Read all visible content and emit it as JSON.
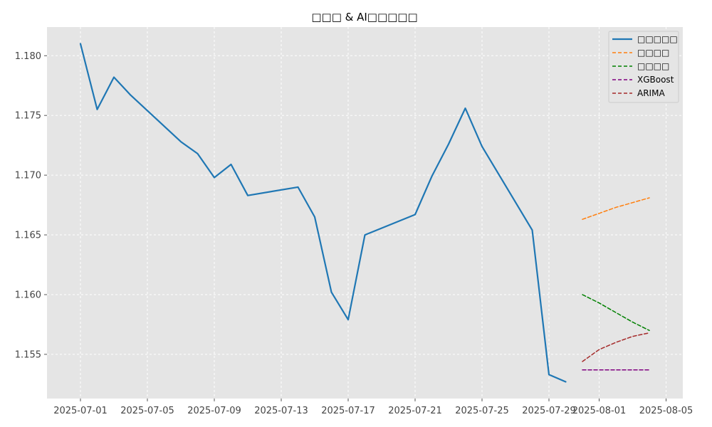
{
  "chart_data": {
    "type": "line",
    "title": "□□□ & AI□□□□□",
    "xlabel": "",
    "ylabel": "",
    "grid": true,
    "legend_position": "top-right",
    "xlim": [
      "2025-06-29",
      "2025-08-06"
    ],
    "ylim": [
      1.1513,
      1.1824
    ],
    "x_ticks": [
      "2025-07-01",
      "2025-07-05",
      "2025-07-09",
      "2025-07-13",
      "2025-07-17",
      "2025-07-21",
      "2025-07-25",
      "2025-07-29",
      "2025-08-01",
      "2025-08-05"
    ],
    "y_ticks": [
      1.155,
      1.16,
      1.165,
      1.17,
      1.175,
      1.18
    ],
    "y_tick_labels": [
      "1.155",
      "1.160",
      "1.165",
      "1.170",
      "1.175",
      "1.180"
    ],
    "series": [
      {
        "name": "□□□□□",
        "color": "#1f77b4",
        "style": "solid",
        "points": [
          [
            "2025-07-01",
            1.181
          ],
          [
            "2025-07-02",
            1.1755
          ],
          [
            "2025-07-03",
            1.1782
          ],
          [
            "2025-07-04",
            1.1767
          ],
          [
            "2025-07-07",
            1.1728
          ],
          [
            "2025-07-08",
            1.1718
          ],
          [
            "2025-07-09",
            1.1698
          ],
          [
            "2025-07-10",
            1.1709
          ],
          [
            "2025-07-11",
            1.1683
          ],
          [
            "2025-07-14",
            1.169
          ],
          [
            "2025-07-15",
            1.1665
          ],
          [
            "2025-07-16",
            1.1602
          ],
          [
            "2025-07-17",
            1.1579
          ],
          [
            "2025-07-18",
            1.165
          ],
          [
            "2025-07-21",
            1.1667
          ],
          [
            "2025-07-22",
            1.1699
          ],
          [
            "2025-07-23",
            1.1726
          ],
          [
            "2025-07-24",
            1.1756
          ],
          [
            "2025-07-25",
            1.1724
          ],
          [
            "2025-07-28",
            1.1654
          ],
          [
            "2025-07-29",
            1.1533
          ],
          [
            "2025-07-30",
            1.1527
          ]
        ]
      },
      {
        "name": "□□□□",
        "color": "#ff7f0e",
        "style": "dashed",
        "points": [
          [
            "2025-07-31",
            1.1663
          ],
          [
            "2025-08-01",
            1.1668
          ],
          [
            "2025-08-02",
            1.1673
          ],
          [
            "2025-08-03",
            1.1677
          ],
          [
            "2025-08-04",
            1.1681
          ]
        ]
      },
      {
        "name": "□□□□",
        "color": "#008000",
        "style": "dashed",
        "points": [
          [
            "2025-07-31",
            1.16
          ],
          [
            "2025-08-01",
            1.1593
          ],
          [
            "2025-08-02",
            1.1585
          ],
          [
            "2025-08-03",
            1.1577
          ],
          [
            "2025-08-04",
            1.157
          ]
        ]
      },
      {
        "name": "XGBoost",
        "color": "#800080",
        "style": "dashed",
        "points": [
          [
            "2025-07-31",
            1.1537
          ],
          [
            "2025-08-01",
            1.1537
          ],
          [
            "2025-08-02",
            1.1537
          ],
          [
            "2025-08-03",
            1.1537
          ],
          [
            "2025-08-04",
            1.1537
          ]
        ]
      },
      {
        "name": "ARIMA",
        "color": "#a52a2a",
        "style": "dashed",
        "points": [
          [
            "2025-07-31",
            1.1544
          ],
          [
            "2025-08-01",
            1.1554
          ],
          [
            "2025-08-02",
            1.156
          ],
          [
            "2025-08-03",
            1.1565
          ],
          [
            "2025-08-04",
            1.1568
          ]
        ]
      }
    ]
  }
}
